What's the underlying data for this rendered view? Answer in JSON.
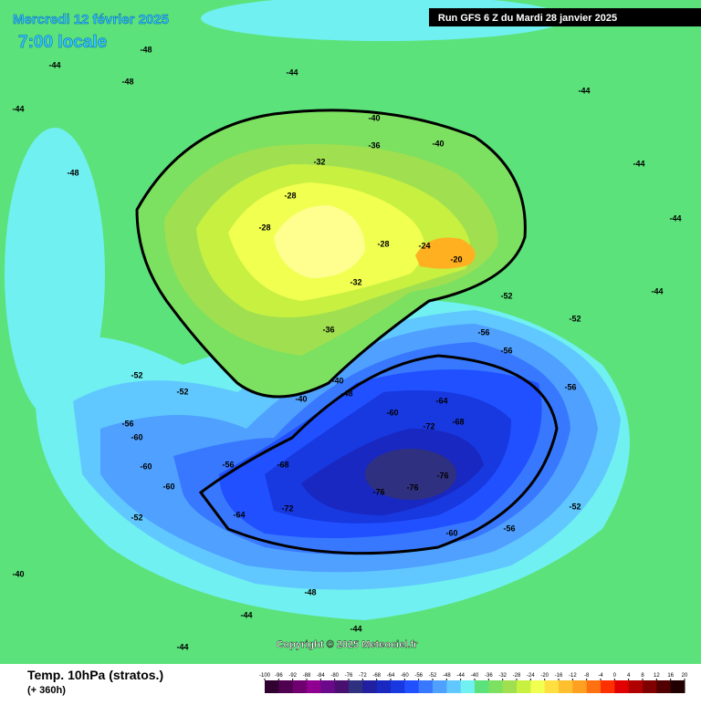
{
  "header": {
    "date": "Mercredi 12 février 2025",
    "time": "7:00 locale",
    "run": "Run GFS 6 Z du Mardi 28 janvier 2025"
  },
  "footer": {
    "title": "Temp. 10hPa (stratos.)",
    "lead": "(+ 360h)",
    "copyright": "Copyright © 2025 Meteociel.fr"
  },
  "scale": {
    "labels": [
      -100,
      -96,
      -92,
      -88,
      -84,
      -80,
      -76,
      -72,
      -68,
      -64,
      -60,
      -56,
      -52,
      -48,
      -44,
      -40,
      -36,
      -32,
      -28,
      -24,
      -20,
      -16,
      -12,
      -8,
      -4,
      0,
      4,
      8,
      12,
      16,
      20
    ],
    "colors": [
      "#300030",
      "#500050",
      "#700070",
      "#900090",
      "#6a0a8a",
      "#4a1070",
      "#303080",
      "#2020a0",
      "#1828c0",
      "#1838e0",
      "#2050ff",
      "#3878ff",
      "#50a0ff",
      "#60c8ff",
      "#70f0f0",
      "#5ce27a",
      "#7ce060",
      "#a0e050",
      "#c8f040",
      "#f0ff50",
      "#ffe040",
      "#ffc030",
      "#ffa020",
      "#ff7010",
      "#ff3000",
      "#e00000",
      "#b00000",
      "#800000",
      "#500000",
      "#200000"
    ]
  },
  "contour_labels": [
    -48,
    -44,
    -44,
    -48,
    -44,
    -48,
    -44,
    -44,
    -44,
    -44,
    -40,
    -40,
    -36,
    -32,
    -28,
    -28,
    -28,
    -20,
    -24,
    -32,
    -36,
    -40,
    -40,
    -48,
    -52,
    -52,
    -56,
    -60,
    -60,
    -60,
    -56,
    -64,
    -68,
    -72,
    -72,
    -76,
    -76,
    -76,
    -68,
    -64,
    -60,
    -56,
    -56,
    -56,
    -52,
    -52,
    -60,
    -56,
    -52,
    -52,
    -48,
    -44,
    -44,
    -40,
    -44
  ]
}
